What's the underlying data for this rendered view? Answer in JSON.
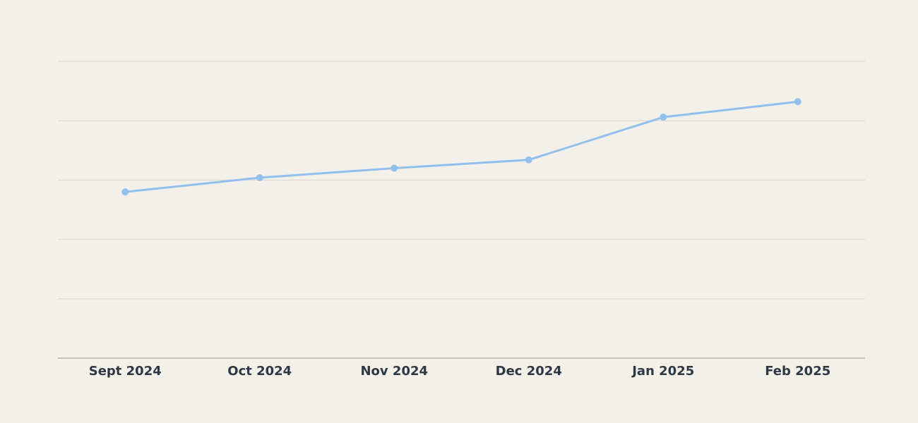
{
  "chart_data": {
    "type": "line",
    "title": "",
    "xlabel": "",
    "ylabel": "",
    "categories": [
      "Sept 2024",
      "Oct 2024",
      "Nov 2024",
      "Dec 2024",
      "Jan 2025",
      "Feb 2025"
    ],
    "series": [
      {
        "values": [
          56,
          60.8,
          64,
          66.8,
          81.2,
          86.4
        ]
      }
    ],
    "ylim": [
      0,
      100
    ],
    "yticks": [
      0,
      20,
      40,
      60,
      80,
      100
    ],
    "grid": true,
    "show_y_tick_labels": false,
    "legend": "none",
    "colors": {
      "background": "#f3f0ea",
      "line": "#92c0ec",
      "marker": "#92c0ec",
      "grid": "#d7d4cf",
      "axis": "#b5b2ad",
      "tick_text": "#2e3844"
    }
  }
}
